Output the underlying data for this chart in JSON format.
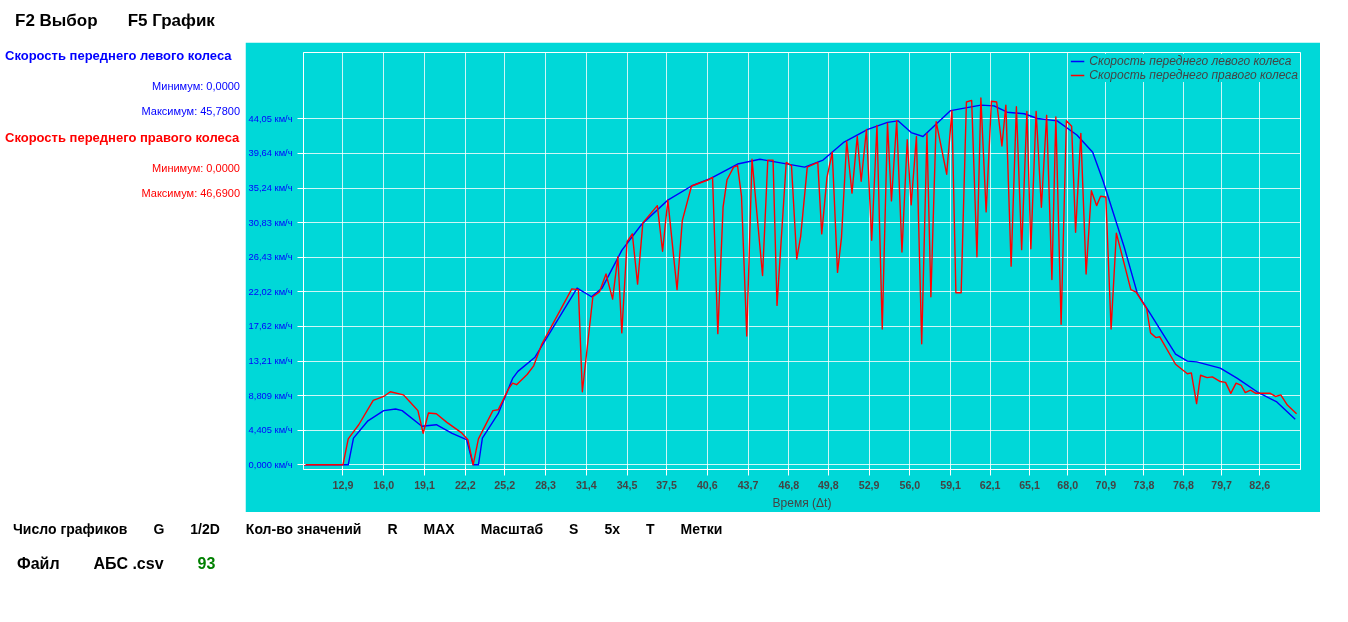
{
  "chart_data": {
    "type": "line",
    "xlabel": "Время (Δt)",
    "xlim": [
      9.9,
      85.7
    ],
    "ylim": [
      -0.6,
      52.5
    ],
    "xticks": [
      {
        "value": 12.9,
        "label": "12,9"
      },
      {
        "value": 16.0,
        "label": "16,0"
      },
      {
        "value": 19.1,
        "label": "19,1"
      },
      {
        "value": 22.2,
        "label": "22,2"
      },
      {
        "value": 25.2,
        "label": "25,2"
      },
      {
        "value": 28.3,
        "label": "28,3"
      },
      {
        "value": 31.4,
        "label": "31,4"
      },
      {
        "value": 34.5,
        "label": "34,5"
      },
      {
        "value": 37.5,
        "label": "37,5"
      },
      {
        "value": 40.6,
        "label": "40,6"
      },
      {
        "value": 43.7,
        "label": "43,7"
      },
      {
        "value": 46.8,
        "label": "46,8"
      },
      {
        "value": 49.8,
        "label": "49,8"
      },
      {
        "value": 52.9,
        "label": "52,9"
      },
      {
        "value": 56.0,
        "label": "56,0"
      },
      {
        "value": 59.1,
        "label": "59,1"
      },
      {
        "value": 62.1,
        "label": "62,1"
      },
      {
        "value": 65.1,
        "label": "65,1"
      },
      {
        "value": 68.0,
        "label": "68,0"
      },
      {
        "value": 70.9,
        "label": "70,9"
      },
      {
        "value": 73.8,
        "label": "73,8"
      },
      {
        "value": 76.8,
        "label": "76,8"
      },
      {
        "value": 79.7,
        "label": "79,7"
      },
      {
        "value": 82.6,
        "label": "82,6"
      }
    ],
    "yticks": [
      {
        "value": 0,
        "label": "0,000 км/ч"
      },
      {
        "value": 4.405,
        "label": "4,405 км/ч"
      },
      {
        "value": 8.809,
        "label": "8,809 км/ч"
      },
      {
        "value": 13.21,
        "label": "13,21 км/ч"
      },
      {
        "value": 17.62,
        "label": "17,62 км/ч"
      },
      {
        "value": 22.02,
        "label": "22,02 км/ч"
      },
      {
        "value": 26.43,
        "label": "26,43 км/ч"
      },
      {
        "value": 30.83,
        "label": "30,83 км/ч"
      },
      {
        "value": 35.24,
        "label": "35,24 км/ч"
      },
      {
        "value": 39.64,
        "label": "39,64 км/ч"
      },
      {
        "value": 44.05,
        "label": "44,05 км/ч"
      }
    ],
    "grid": true,
    "legend": "top right",
    "series": [
      {
        "name": "Скорость переднего левого колеса",
        "color": "#0000ff",
        "x": [
          9.9,
          13.3,
          13.7,
          14.8,
          16.0,
          16.9,
          17.4,
          18.9,
          20.0,
          21.2,
          22.3,
          22.8,
          23.2,
          23.5,
          24.7,
          25.8,
          26.2,
          27.5,
          30.7,
          31.8,
          32.6,
          34.1,
          35.6,
          37.6,
          39.4,
          40.9,
          42.9,
          44.6,
          45.0,
          48.0,
          49.4,
          51.0,
          52.8,
          54.3,
          55.1,
          56.1,
          57.0,
          59.1,
          61.4,
          62.4,
          63.4,
          64.7,
          65.7,
          67.2,
          68.7,
          69.9,
          70.7,
          72.3,
          73.3,
          74.3,
          76.2,
          77.1,
          77.8,
          79.6,
          80.9,
          82.4,
          83.9,
          85.3
        ],
        "values": [
          0,
          0,
          3.4,
          5.6,
          6.9,
          7.1,
          6.9,
          4.9,
          5.1,
          4.0,
          3.2,
          0,
          0,
          3.4,
          6.5,
          11.0,
          11.9,
          13.7,
          22.5,
          21.4,
          22.5,
          27.3,
          30.6,
          33.7,
          35.5,
          36.5,
          38.3,
          38.9,
          38.8,
          37.9,
          38.8,
          41.1,
          42.7,
          43.6,
          43.8,
          42.3,
          41.8,
          45.1,
          45.8,
          45.7,
          44.9,
          44.7,
          44.1,
          43.8,
          42.0,
          39.8,
          36.1,
          27.7,
          21.8,
          19.2,
          14.1,
          13.2,
          13.1,
          12.3,
          11.0,
          9.3,
          8.0,
          5.8
        ]
      },
      {
        "name": "Скорость переднего правого колеса",
        "color": "#ff0000",
        "x": [
          9.9,
          12.9,
          13.3,
          14.1,
          15.2,
          16.0,
          16.5,
          17.5,
          18.0,
          18.6,
          19.0,
          19.4,
          20.0,
          20.8,
          21.9,
          22.4,
          22.8,
          23.2,
          24.3,
          24.7,
          25.5,
          25.8,
          26.1,
          26.9,
          27.4,
          28.0,
          30.3,
          30.8,
          31.1,
          31.9,
          32.4,
          32.9,
          33.4,
          33.8,
          34.1,
          34.5,
          34.9,
          35.3,
          35.7,
          36.8,
          37.2,
          37.6,
          38.3,
          38.7,
          39.4,
          40.7,
          41.0,
          41.4,
          41.8,
          42.1,
          42.6,
          42.9,
          43.2,
          43.6,
          44.0,
          44.8,
          45.2,
          45.6,
          45.9,
          46.6,
          47.0,
          47.4,
          47.7,
          48.2,
          49.0,
          49.3,
          49.7,
          50.1,
          50.5,
          50.8,
          51.2,
          51.6,
          52.0,
          52.3,
          52.7,
          53.1,
          53.5,
          53.9,
          54.3,
          54.6,
          55.0,
          55.4,
          55.8,
          56.1,
          56.5,
          56.9,
          57.3,
          57.6,
          58.0,
          58.8,
          59.2,
          59.5,
          59.9,
          60.3,
          60.7,
          61.1,
          61.4,
          61.8,
          62.2,
          62.6,
          63.0,
          63.3,
          63.7,
          64.1,
          64.5,
          64.9,
          65.2,
          65.6,
          66.0,
          66.4,
          66.8,
          67.1,
          67.5,
          67.9,
          68.3,
          68.6,
          69.0,
          69.4,
          69.8,
          70.2,
          70.5,
          70.9,
          71.3,
          71.7,
          72.8,
          73.2,
          74.0,
          74.3,
          74.7,
          75.0,
          76.2,
          77.1,
          77.4,
          77.8,
          78.1,
          78.6,
          79.0,
          79.6,
          80.0,
          80.4,
          80.8,
          81.2,
          81.5,
          81.9,
          82.3,
          83.4,
          83.8,
          84.2,
          84.7,
          85.4
        ],
        "values": [
          0,
          0,
          3.3,
          5.1,
          8.2,
          8.7,
          9.3,
          8.9,
          8.0,
          6.9,
          4.0,
          6.6,
          6.5,
          5.4,
          4.1,
          3.2,
          0,
          3.3,
          6.9,
          7.0,
          9.7,
          10.4,
          10.2,
          11.5,
          12.6,
          15.3,
          22.4,
          22.3,
          9.3,
          21.4,
          22.0,
          24.3,
          21.1,
          26.5,
          16.8,
          28.4,
          29.4,
          23.0,
          30.8,
          33.0,
          27.2,
          33.7,
          22.3,
          31.1,
          35.5,
          36.3,
          36.6,
          16.7,
          32.8,
          36.3,
          37.9,
          38.1,
          34.2,
          16.4,
          38.9,
          24.1,
          38.8,
          38.8,
          20.3,
          38.5,
          38.1,
          26.2,
          29.1,
          37.9,
          38.5,
          29.4,
          36.6,
          39.8,
          24.5,
          28.9,
          41.2,
          34.6,
          41.8,
          36.1,
          42.7,
          28.6,
          43.2,
          17.3,
          43.5,
          33.6,
          43.8,
          27.1,
          41.4,
          33.1,
          41.8,
          15.4,
          42.2,
          21.4,
          43.7,
          37.0,
          45.1,
          21.9,
          21.9,
          46.2,
          46.4,
          26.5,
          46.7,
          32.2,
          46.3,
          46.2,
          40.6,
          45.8,
          25.3,
          45.6,
          27.4,
          45.0,
          27.5,
          45.0,
          32.8,
          44.5,
          23.6,
          44.3,
          17.9,
          43.8,
          43.1,
          29.6,
          42.2,
          24.3,
          34.9,
          33.0,
          34.2,
          34.1,
          17.3,
          29.5,
          22.3,
          22.0,
          19.9,
          16.8,
          16.2,
          16.3,
          12.8,
          11.6,
          11.7,
          7.8,
          11.4,
          11.1,
          11.2,
          10.6,
          10.5,
          9.1,
          10.4,
          10.1,
          9.2,
          9.5,
          9.1,
          9.1,
          8.7,
          8.9,
          7.6,
          6.5
        ]
      }
    ],
    "annotations": [
      "Минимум: 0,0000",
      "Максимум: 45,7800",
      "Минимум: 0,0000",
      "Максимум: 46,6900",
      "F2 Выбор",
      "F5 График",
      "Число графиков",
      "G",
      "1/2D",
      "Кол-во значений",
      "R",
      "MAX",
      "Масштаб",
      "S",
      "5x",
      "T",
      "Метки",
      "Файл",
      "АБС .csv",
      "93"
    ]
  }
}
